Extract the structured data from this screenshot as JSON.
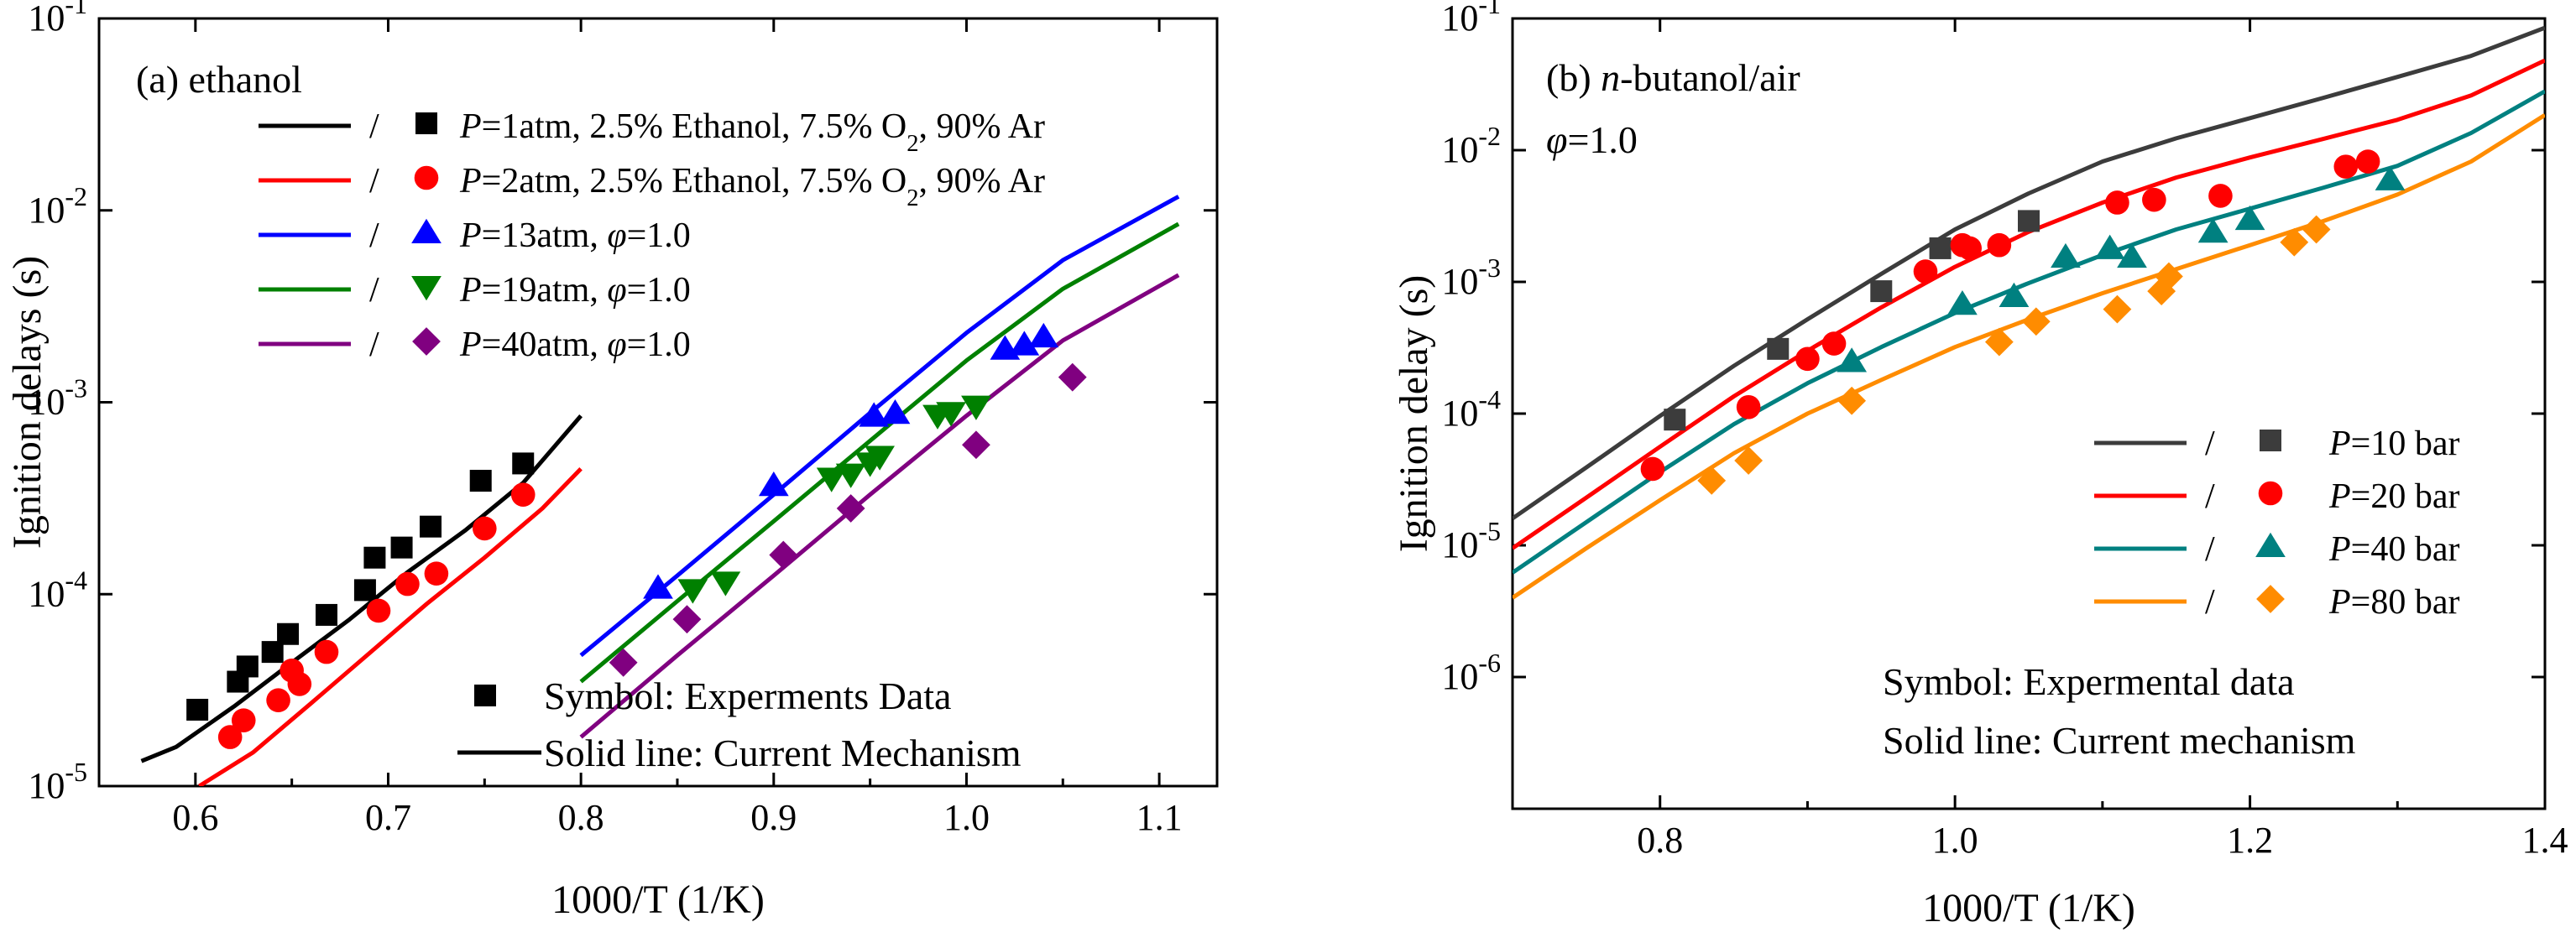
{
  "chart_data": [
    {
      "id": "a",
      "type": "scatter",
      "title": "(a) ethanol",
      "title_parts": [
        "(a) ethanol"
      ],
      "xlabel": "1000/T (1/K)",
      "ylabel": "Ignition delays (s)",
      "xlim": [
        0.55,
        1.13
      ],
      "ylim": [
        1e-05,
        0.1
      ],
      "xscale": "linear",
      "yscale": "log",
      "xticks": [
        0.6,
        0.7,
        0.8,
        0.9,
        1.0,
        1.1
      ],
      "xtick_labels": [
        "0.6",
        "0.7",
        "0.8",
        "0.9",
        "1.0",
        "1.1"
      ],
      "yticks": [
        1e-05,
        0.0001,
        0.001,
        0.01,
        0.1
      ],
      "ytick_labels": [
        {
          "base": "10",
          "exp": "-5"
        },
        {
          "base": "10",
          "exp": "-4"
        },
        {
          "base": "10",
          "exp": "-3"
        },
        {
          "base": "10",
          "exp": "-2"
        },
        {
          "base": "10",
          "exp": "-1"
        }
      ],
      "slash": "/",
      "legend_position": "top-left",
      "series": [
        {
          "name": "P=1atm, 2.5% Ethanol, 7.5% O2, 90% Ar",
          "label_parts": [
            [
              "P",
              "i"
            ],
            [
              "=1atm, 2.5% Ethanol, 7.5% O",
              ""
            ],
            [
              "2",
              "sub"
            ],
            [
              ", 90% Ar",
              ""
            ]
          ],
          "color": "#000000",
          "marker": "square",
          "line": {
            "x": [
              0.572,
              0.59,
              0.62,
              0.65,
              0.68,
              0.71,
              0.74,
              0.77,
              0.8
            ],
            "y": [
              1.35e-05,
              1.6e-05,
              2.6e-05,
              4.4e-05,
              7.4e-05,
              0.00013,
              0.000215,
              0.00038,
              0.00085
            ]
          },
          "points": {
            "x": [
              0.601,
              0.622,
              0.627,
              0.64,
              0.648,
              0.668,
              0.688,
              0.693,
              0.707,
              0.722,
              0.748,
              0.77
            ],
            "y": [
              2.5e-05,
              3.5e-05,
              4.2e-05,
              5e-05,
              6.2e-05,
              7.8e-05,
              0.000105,
              0.000155,
              0.000175,
              0.000225,
              0.00039,
              0.00048
            ]
          }
        },
        {
          "name": "P=2atm, 2.5% Ethanol, 7.5% O2, 90% Ar",
          "label_parts": [
            [
              "P",
              "i"
            ],
            [
              "=2atm, 2.5% Ethanol, 7.5% O",
              ""
            ],
            [
              "2",
              "sub"
            ],
            [
              ", 90% Ar",
              ""
            ]
          ],
          "color": "#ff0000",
          "marker": "circle",
          "line": {
            "x": [
              0.602,
              0.63,
              0.66,
              0.69,
              0.72,
              0.75,
              0.78,
              0.8
            ],
            "y": [
              1e-05,
              1.5e-05,
              2.7e-05,
              4.9e-05,
              8.9e-05,
              0.000155,
              0.00028,
              0.00045
            ]
          },
          "points": {
            "x": [
              0.618,
              0.625,
              0.643,
              0.65,
              0.654,
              0.668,
              0.695,
              0.71,
              0.725,
              0.75,
              0.77
            ],
            "y": [
              1.8e-05,
              2.2e-05,
              2.8e-05,
              4e-05,
              3.4e-05,
              5e-05,
              8.2e-05,
              0.000113,
              0.000128,
              0.00022,
              0.00033
            ]
          }
        },
        {
          "name": "P=13atm, φ=1.0",
          "label_parts": [
            [
              "P",
              "i"
            ],
            [
              "=13atm, ",
              ""
            ],
            [
              "φ",
              "i"
            ],
            [
              "=1.0",
              ""
            ]
          ],
          "color": "#0000ff",
          "marker": "triangle-up",
          "line": {
            "x": [
              0.8,
              0.85,
              0.9,
              0.95,
              1.0,
              1.05,
              1.11
            ],
            "y": [
              4.8e-05,
              0.000125,
              0.00033,
              0.00088,
              0.0023,
              0.0055,
              0.0118
            ]
          },
          "points": {
            "x": [
              0.84,
              0.9,
              0.952,
              0.963,
              1.02,
              1.03,
              1.04
            ],
            "y": [
              0.000108,
              0.00037,
              0.00085,
              0.00088,
              0.0019,
              0.002,
              0.0022
            ]
          }
        },
        {
          "name": "P=19atm, φ=1.0",
          "label_parts": [
            [
              "P",
              "i"
            ],
            [
              "=19atm, ",
              ""
            ],
            [
              "φ",
              "i"
            ],
            [
              "=1.0",
              ""
            ]
          ],
          "color": "#008000",
          "marker": "triangle-down",
          "line": {
            "x": [
              0.8,
              0.85,
              0.9,
              0.95,
              1.0,
              1.05,
              1.11
            ],
            "y": [
              3.5e-05,
              9.2e-05,
              0.00024,
              0.00063,
              0.00165,
              0.0039,
              0.0085
            ]
          },
          "points": {
            "x": [
              0.858,
              0.875,
              0.93,
              0.94,
              0.95,
              0.955,
              0.985,
              0.992,
              1.005
            ],
            "y": [
              0.000105,
              0.000115,
              0.0004,
              0.00042,
              0.00048,
              0.00052,
              0.00085,
              0.00088,
              0.00095
            ]
          }
        },
        {
          "name": "P=40atm, φ=1.0",
          "label_parts": [
            [
              "P",
              "i"
            ],
            [
              "=40atm, ",
              ""
            ],
            [
              "φ",
              "i"
            ],
            [
              "=1.0",
              ""
            ]
          ],
          "color": "#800080",
          "marker": "diamond",
          "line": {
            "x": [
              0.8,
              0.85,
              0.9,
              0.95,
              1.0,
              1.05,
              1.11
            ],
            "y": [
              1.8e-05,
              4.8e-05,
              0.000125,
              0.00033,
              0.00085,
              0.0021,
              0.0046
            ]
          },
          "points": {
            "x": [
              0.822,
              0.855,
              0.905,
              0.94,
              1.005,
              1.055
            ],
            "y": [
              4.4e-05,
              7.4e-05,
              0.00016,
              0.00028,
              0.0006,
              0.00135
            ]
          }
        }
      ],
      "notes": [
        {
          "text": "Symbol: Experments Data",
          "marker": "square",
          "color": "#000000"
        },
        {
          "text": "Solid line: Current Mechanism",
          "marker": "line",
          "color": "#000000"
        }
      ]
    },
    {
      "id": "b",
      "type": "scatter",
      "title": "(b) n-butanol/air",
      "title_parts": [
        [
          "(b) ",
          ""
        ],
        [
          "n",
          "i"
        ],
        [
          "-butanol/air",
          ""
        ]
      ],
      "subtitle": "φ=1.0",
      "subtitle_parts": [
        [
          "φ",
          "i"
        ],
        [
          "=1.0",
          ""
        ]
      ],
      "xlabel": "1000/T (1/K)",
      "ylabel": "Ignition delay (s)",
      "xlim": [
        0.7,
        1.4
      ],
      "ylim": [
        1e-07,
        0.1
      ],
      "xscale": "linear",
      "yscale": "log",
      "xticks": [
        0.8,
        1.0,
        1.2,
        1.4
      ],
      "xtick_labels": [
        "0.8",
        "1.0",
        "1.2",
        "1.4"
      ],
      "yticks": [
        1e-06,
        1e-05,
        0.0001,
        0.001,
        0.01,
        0.1
      ],
      "ytick_labels": [
        {
          "base": "10",
          "exp": "-6"
        },
        {
          "base": "10",
          "exp": "-5"
        },
        {
          "base": "10",
          "exp": "-4"
        },
        {
          "base": "10",
          "exp": "-3"
        },
        {
          "base": "10",
          "exp": "-2"
        },
        {
          "base": "10",
          "exp": "-1"
        }
      ],
      "slash": "/",
      "legend_position": "bottom-right",
      "series": [
        {
          "name": "P=10 bar",
          "label_parts": [
            [
              "P",
              "i"
            ],
            [
              "=10 bar",
              ""
            ]
          ],
          "color": "#3c3c3c",
          "marker": "square",
          "line": {
            "x": [
              0.7,
              0.75,
              0.8,
              0.85,
              0.9,
              0.95,
              1.0,
              1.05,
              1.1,
              1.15,
              1.2,
              1.25,
              1.3,
              1.35,
              1.4
            ],
            "y": [
              1.6e-05,
              3.9e-05,
              9.6e-05,
              0.00023,
              0.00052,
              0.00115,
              0.0025,
              0.0047,
              0.0082,
              0.0123,
              0.0175,
              0.025,
              0.036,
              0.052,
              0.085
            ]
          },
          "points": {
            "x": [
              0.81,
              0.88,
              0.95,
              0.99,
              1.05
            ],
            "y": [
              9e-05,
              0.00031,
              0.00085,
              0.0018,
              0.0029
            ]
          }
        },
        {
          "name": "P=20 bar",
          "label_parts": [
            [
              "P",
              "i"
            ],
            [
              "=20 bar",
              ""
            ]
          ],
          "color": "#ff0000",
          "marker": "circle",
          "line": {
            "x": [
              0.7,
              0.75,
              0.8,
              0.85,
              0.9,
              0.95,
              1.0,
              1.05,
              1.1,
              1.15,
              1.2,
              1.25,
              1.3,
              1.35,
              1.4
            ],
            "y": [
              9.5e-06,
              2.3e-05,
              5.6e-05,
              0.000135,
              0.0003,
              0.00064,
              0.0013,
              0.0024,
              0.004,
              0.0062,
              0.0088,
              0.0122,
              0.017,
              0.026,
              0.048
            ]
          },
          "points": {
            "x": [
              0.795,
              0.86,
              0.9,
              0.918,
              0.98,
              1.005,
              1.01,
              1.03,
              1.11,
              1.135,
              1.18,
              1.265,
              1.28
            ],
            "y": [
              3.8e-05,
              0.000112,
              0.00026,
              0.00034,
              0.0012,
              0.0019,
              0.0018,
              0.0019,
              0.004,
              0.0042,
              0.0045,
              0.0075,
              0.0082
            ]
          }
        },
        {
          "name": "P=40 bar",
          "label_parts": [
            [
              "P",
              "i"
            ],
            [
              "=40 bar",
              ""
            ]
          ],
          "color": "#008080",
          "marker": "triangle-up",
          "line": {
            "x": [
              0.7,
              0.75,
              0.8,
              0.85,
              0.9,
              0.95,
              1.0,
              1.05,
              1.1,
              1.15,
              1.2,
              1.25,
              1.3,
              1.35,
              1.4
            ],
            "y": [
              6.2e-06,
              1.5e-05,
              3.6e-05,
              8.3e-05,
              0.00017,
              0.00032,
              0.00058,
              0.00098,
              0.0016,
              0.0025,
              0.0036,
              0.0052,
              0.0076,
              0.0135,
              0.028
            ]
          },
          "points": {
            "x": [
              0.93,
              1.005,
              1.04,
              1.075,
              1.105,
              1.12,
              1.175,
              1.2,
              1.295
            ],
            "y": [
              0.00025,
              0.00068,
              0.00078,
              0.00155,
              0.0018,
              0.00155,
              0.0024,
              0.003,
              0.006
            ]
          }
        },
        {
          "name": "P=80 bar",
          "label_parts": [
            [
              "P",
              "i"
            ],
            [
              "=80 bar",
              ""
            ]
          ],
          "color": "#ff8c00",
          "marker": "diamond",
          "line": {
            "x": [
              0.7,
              0.75,
              0.8,
              0.85,
              0.9,
              0.95,
              1.0,
              1.05,
              1.1,
              1.15,
              1.2,
              1.25,
              1.3,
              1.35,
              1.4
            ],
            "y": [
              4e-06,
              9.5e-06,
              2.2e-05,
              5e-05,
              0.0001,
              0.00018,
              0.00032,
              0.00052,
              0.00082,
              0.00125,
              0.0019,
              0.0029,
              0.0046,
              0.0082,
              0.0185
            ]
          },
          "points": {
            "x": [
              0.835,
              0.86,
              0.93,
              1.03,
              1.055,
              1.11,
              1.14,
              1.145,
              1.23,
              1.245
            ],
            "y": [
              3.1e-05,
              4.4e-05,
              0.000125,
              0.00035,
              0.0005,
              0.00062,
              0.00085,
              0.0011,
              0.002,
              0.0025
            ]
          }
        }
      ],
      "notes": [
        {
          "text": "Symbol: Expermental data"
        },
        {
          "text": "Solid line: Current mechanism"
        }
      ]
    }
  ]
}
